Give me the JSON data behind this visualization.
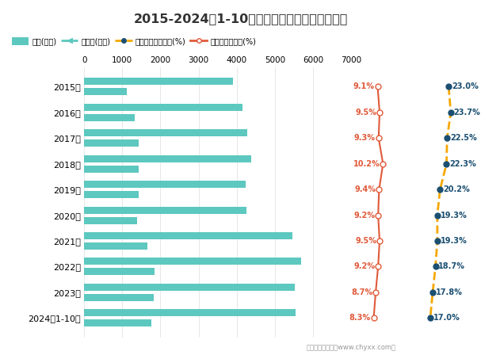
{
  "title": "2015-2024年1-10月河北省工业企业存货统计图",
  "years": [
    "2015年",
    "2016年",
    "2017年",
    "2018年",
    "2019年",
    "2020年",
    "2021年",
    "2022年",
    "2023年",
    "2024年1-10月"
  ],
  "legend_labels": [
    "存货(亿元)",
    "产成品(亿元)",
    "存货占流动资产比(%)",
    "存货占总资产比(%)"
  ],
  "inventory": [
    3900,
    4150,
    4280,
    4380,
    4230,
    4250,
    5450,
    5680,
    5520,
    5550
  ],
  "finished_goods": [
    1120,
    1330,
    1430,
    1430,
    1430,
    1380,
    1650,
    1850,
    1820,
    1760
  ],
  "current_asset_ratio": [
    9.1,
    9.5,
    9.3,
    10.2,
    9.4,
    9.2,
    9.5,
    9.2,
    8.7,
    8.3
  ],
  "total_asset_ratio": [
    23.0,
    23.7,
    22.5,
    22.3,
    20.2,
    19.3,
    19.3,
    18.7,
    17.8,
    17.0
  ],
  "inventory_color": "#5DC8BF",
  "finished_goods_color": "#5DC8BF",
  "current_ratio_color": "#E05A3A",
  "total_ratio_color": "#F5A800",
  "total_ratio_dot_color": "#1B4F72",
  "xlim": [
    0,
    7000
  ],
  "xticks": [
    0,
    1000,
    2000,
    3000,
    4000,
    5000,
    6000,
    7000
  ],
  "bg_color": "#FFFFFF",
  "footer": "制图：智妆咋询（www.chyxx.com）"
}
